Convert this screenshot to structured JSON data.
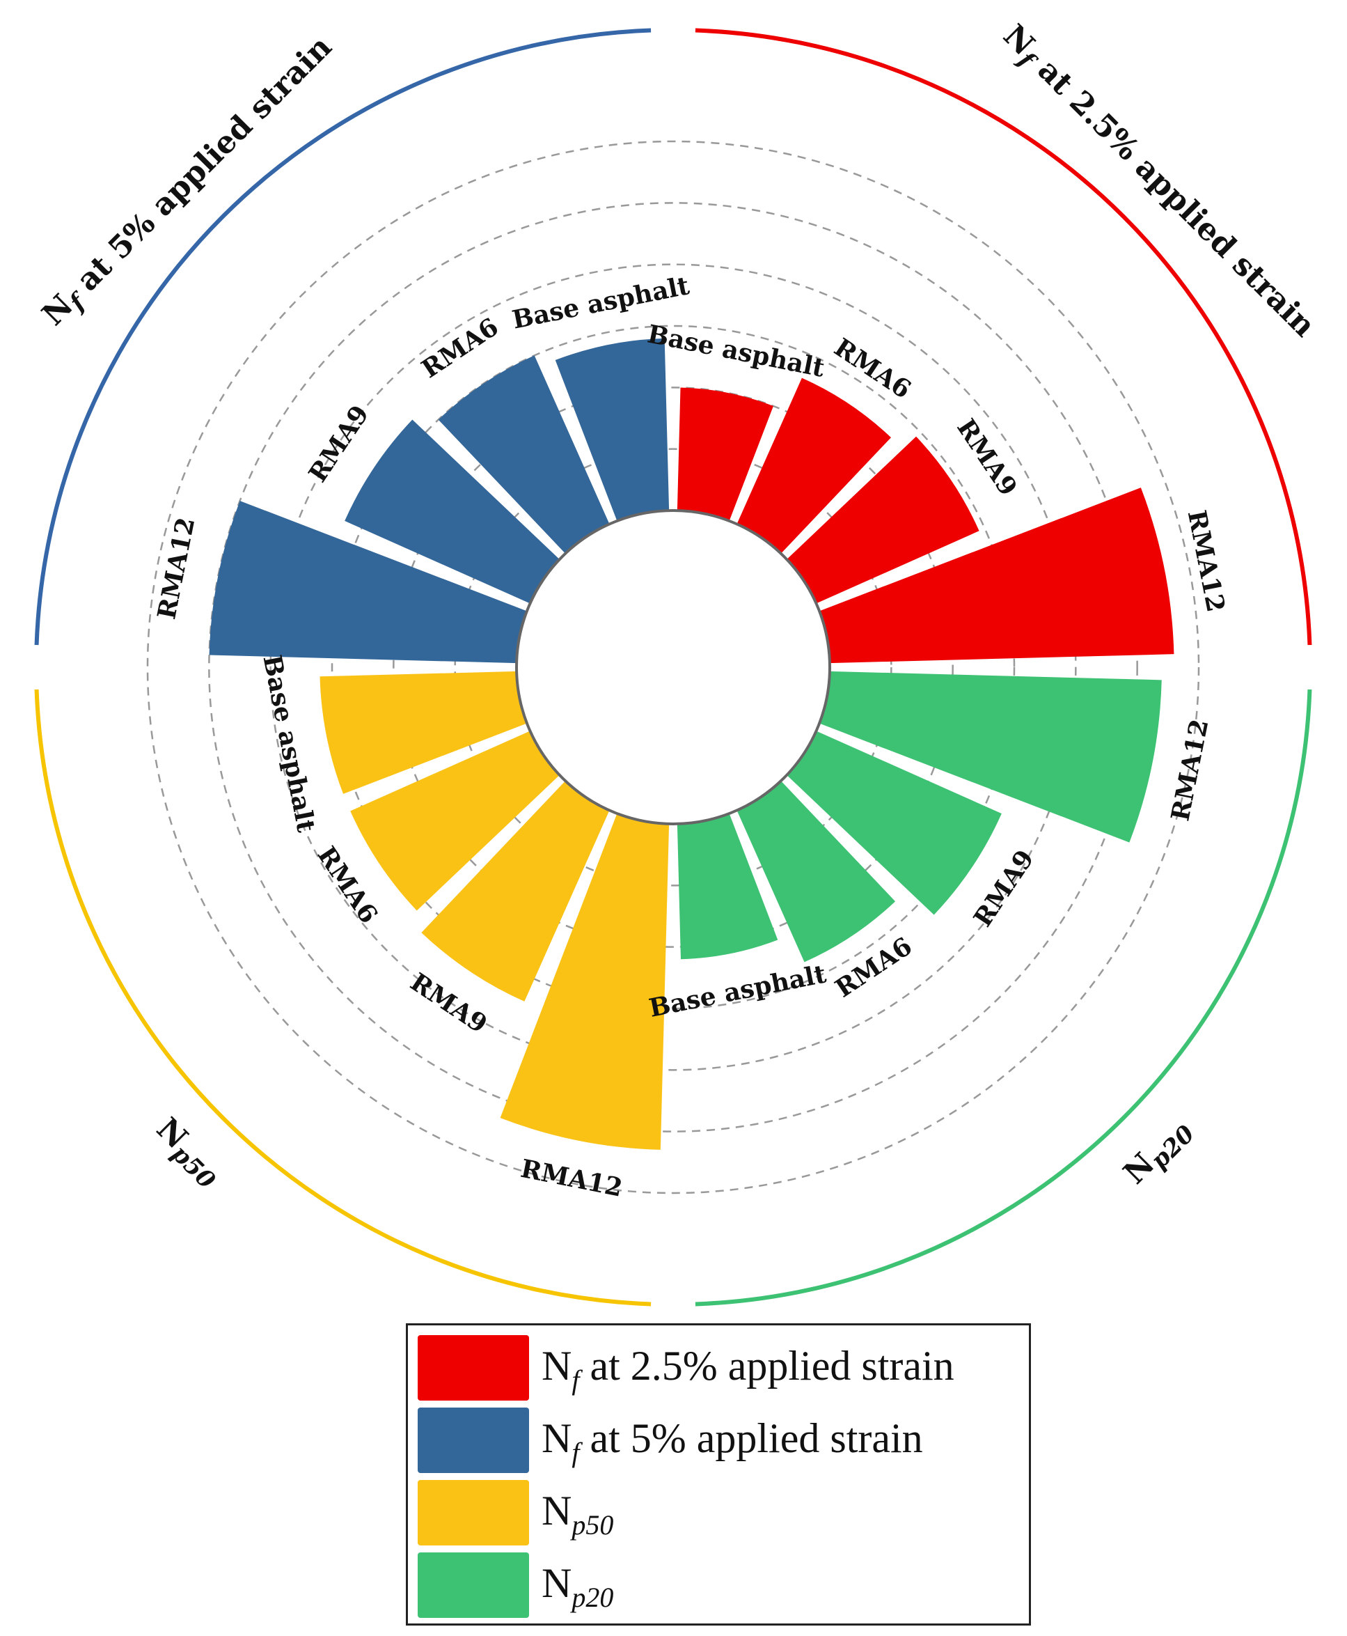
{
  "chart_data": {
    "type": "radial-bar",
    "title": "",
    "radial_scale_max": 6,
    "grid_rings": [
      1,
      2,
      3,
      4,
      5,
      6
    ],
    "groups": [
      {
        "key": "nf25",
        "name": "Nf at 2.5% applied strain",
        "title_main": "N",
        "title_sub": "f",
        "title_rest": " at 2.5% applied strain",
        "color": "#ee0000",
        "arc_color": "#ee0000",
        "categories": [
          "Base asphalt",
          "RMA6",
          "RMA9",
          "RMA12"
        ],
        "values": [
          2.0,
          2.6,
          2.9,
          5.6
        ]
      },
      {
        "key": "np20",
        "name": "Np20",
        "title_main": "N",
        "title_sub": "p20",
        "title_rest": "",
        "color": "#3dc273",
        "arc_color": "#3dc273",
        "categories": [
          "RMA12",
          "RMA9",
          "RMA6",
          "Base asphalt"
        ],
        "values": [
          5.4,
          3.3,
          2.7,
          2.2
        ]
      },
      {
        "key": "np50",
        "name": "Np50",
        "title_main": "N",
        "title_sub": "p50",
        "title_rest": "",
        "color": "#fbc216",
        "arc_color": "#f6c400",
        "categories": [
          "RMA12",
          "RMA9",
          "RMA6",
          "Base asphalt"
        ],
        "values": [
          5.3,
          3.4,
          3.2,
          3.2
        ]
      },
      {
        "key": "nf5",
        "name": "Nf at 5% applied strain",
        "title_main": "N",
        "title_sub": "f",
        "title_rest": " at 5% applied strain",
        "color": "#336699",
        "arc_color": "#3566a8",
        "categories": [
          "RMA12",
          "RMA9",
          "RMA6",
          "Base asphalt"
        ],
        "values": [
          5.0,
          3.3,
          3.0,
          2.8
        ]
      }
    ]
  },
  "legend": {
    "items": [
      {
        "main": "N",
        "sub": "f",
        "rest": " at 2.5% applied strain",
        "color": "#ee0000"
      },
      {
        "main": "N",
        "sub": "f",
        "rest": " at 5% applied strain",
        "color": "#336699"
      },
      {
        "main": "N",
        "sub": "p50",
        "rest": "",
        "color": "#fbc216"
      },
      {
        "main": "N",
        "sub": "p20",
        "rest": "",
        "color": "#3dc273"
      }
    ]
  }
}
